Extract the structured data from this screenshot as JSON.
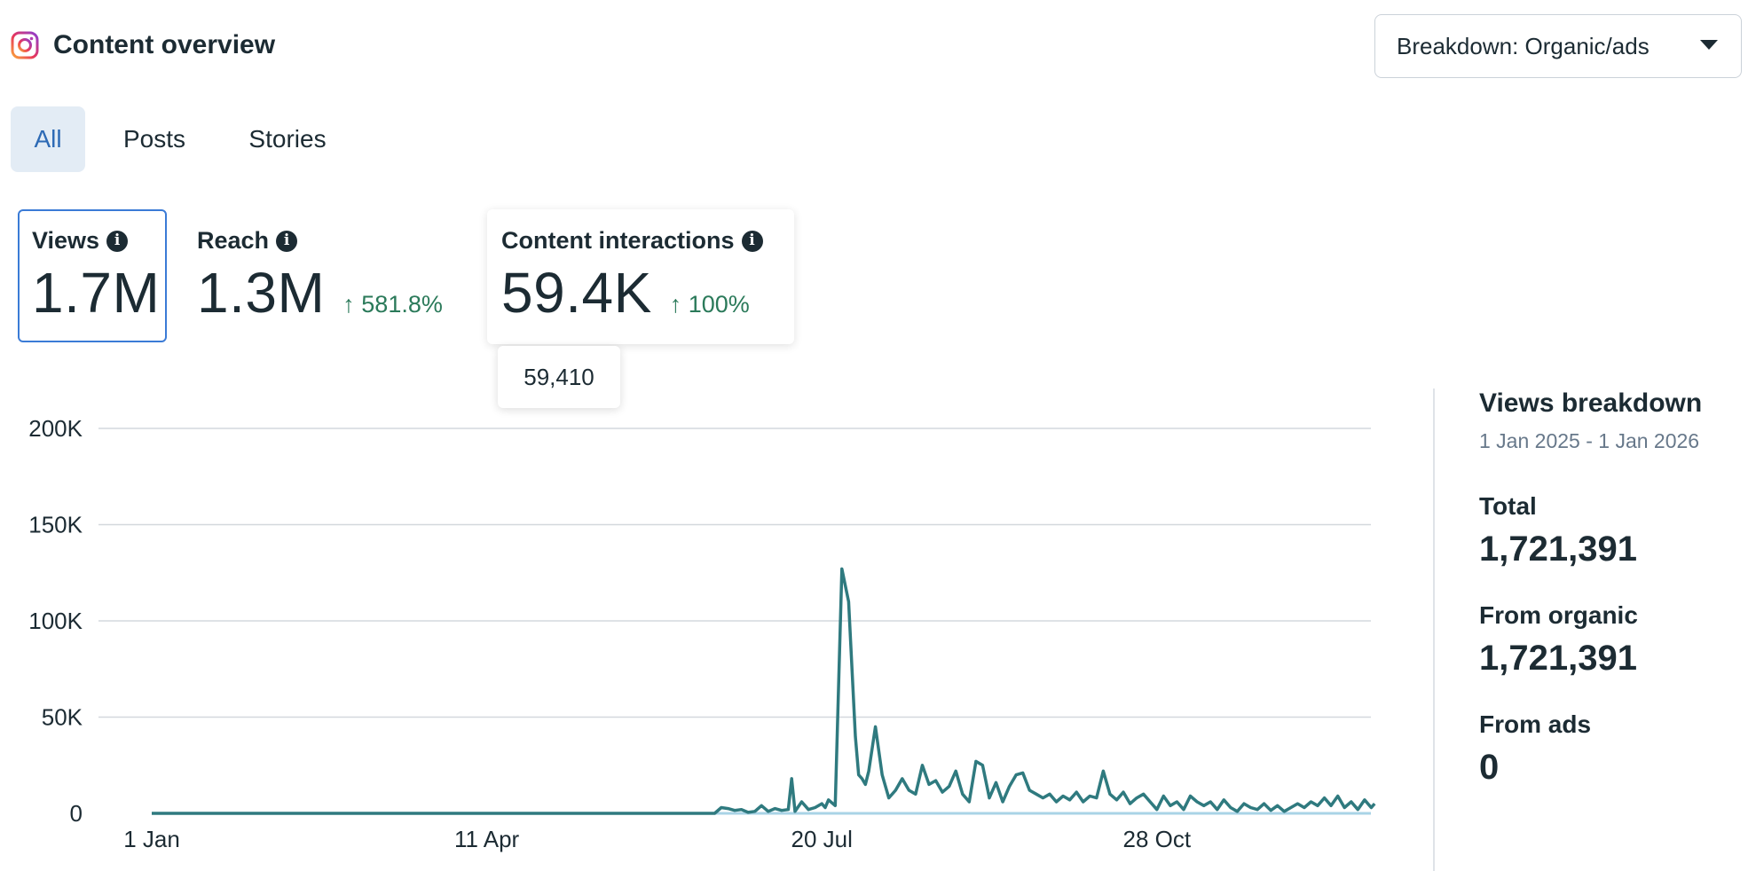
{
  "header": {
    "title": "Content overview",
    "icon": "instagram-icon",
    "breakdown_label": "Breakdown: Organic/ads"
  },
  "tabs": [
    {
      "label": "All",
      "active": true
    },
    {
      "label": "Posts",
      "active": false
    },
    {
      "label": "Stories",
      "active": false
    }
  ],
  "metrics": {
    "views": {
      "label": "Views",
      "value": "1.7M",
      "selected": true
    },
    "reach": {
      "label": "Reach",
      "value": "1.3M",
      "change": "↑ 581.8%"
    },
    "interactions": {
      "label": "Content interactions",
      "value": "59.4K",
      "change": "↑ 100%",
      "tooltip": "59,410"
    }
  },
  "colors": {
    "accent": "#2d6ab5",
    "line": "#2f7a7f",
    "positive": "#2b7a5a"
  },
  "chart_data": {
    "type": "line",
    "title": "",
    "xlabel": "",
    "ylabel": "",
    "ylim": [
      0,
      200000
    ],
    "grid": true,
    "y_ticks": [
      "0",
      "50K",
      "100K",
      "150K",
      "200K"
    ],
    "y_tick_values": [
      0,
      50000,
      100000,
      150000,
      200000
    ],
    "x_ticks": [
      "1 Jan",
      "11 Apr",
      "20 Jul",
      "28 Oct"
    ],
    "x_tick_days": [
      0,
      100,
      200,
      300
    ],
    "series": [
      {
        "x": [
          0,
          168,
          170,
          172,
          174,
          176,
          178,
          180,
          182,
          184,
          186,
          188,
          190,
          191,
          192,
          194,
          196,
          198,
          200,
          201,
          202,
          204,
          206,
          208,
          210,
          211,
          212,
          213,
          214,
          216,
          218,
          220,
          222,
          224,
          226,
          228,
          230,
          232,
          234,
          236,
          238,
          240,
          242,
          244,
          246,
          248,
          250,
          252,
          254,
          256,
          258,
          260,
          262,
          264,
          266,
          268,
          270,
          272,
          274,
          276,
          278,
          280,
          282,
          284,
          286,
          288,
          290,
          292,
          294,
          296,
          298,
          300,
          302,
          304,
          306,
          308,
          310,
          312,
          314,
          316,
          318,
          320,
          322,
          324,
          326,
          328,
          330,
          332,
          334,
          336,
          338,
          340,
          342,
          344,
          346,
          348,
          350,
          352,
          354,
          356,
          358,
          360,
          362,
          364,
          365
        ],
        "y": [
          0,
          0,
          3000,
          2500,
          1500,
          2000,
          500,
          1000,
          4000,
          1000,
          2500,
          1500,
          2000,
          18000,
          1000,
          6000,
          2000,
          3000,
          5000,
          3000,
          7000,
          4000,
          127000,
          110000,
          40000,
          20000,
          18000,
          15000,
          22000,
          45000,
          20000,
          8000,
          12000,
          18000,
          12000,
          10000,
          25000,
          15000,
          17000,
          11000,
          14000,
          22000,
          10000,
          6000,
          27000,
          25000,
          8000,
          16000,
          6000,
          14000,
          20000,
          21000,
          12000,
          10000,
          8000,
          10000,
          6000,
          9000,
          7000,
          11000,
          6000,
          9000,
          8000,
          22000,
          10000,
          7000,
          11000,
          5000,
          8000,
          10000,
          6000,
          2000,
          9000,
          4000,
          6000,
          2000,
          9000,
          6000,
          4000,
          6000,
          2000,
          7000,
          3000,
          1000,
          5000,
          3000,
          2000,
          5000,
          1500,
          4000,
          1000,
          3000,
          5000,
          3000,
          6000,
          4000,
          8000,
          4000,
          9000,
          3000,
          6000,
          2000,
          7000,
          3000,
          5000
        ]
      }
    ]
  },
  "side_panel": {
    "title": "Views breakdown",
    "date_range": "1 Jan 2025 - 1 Jan 2026",
    "total_label": "Total",
    "total_value": "1,721,391",
    "organic_label": "From organic",
    "organic_value": "1,721,391",
    "ads_label": "From ads",
    "ads_value": "0"
  }
}
